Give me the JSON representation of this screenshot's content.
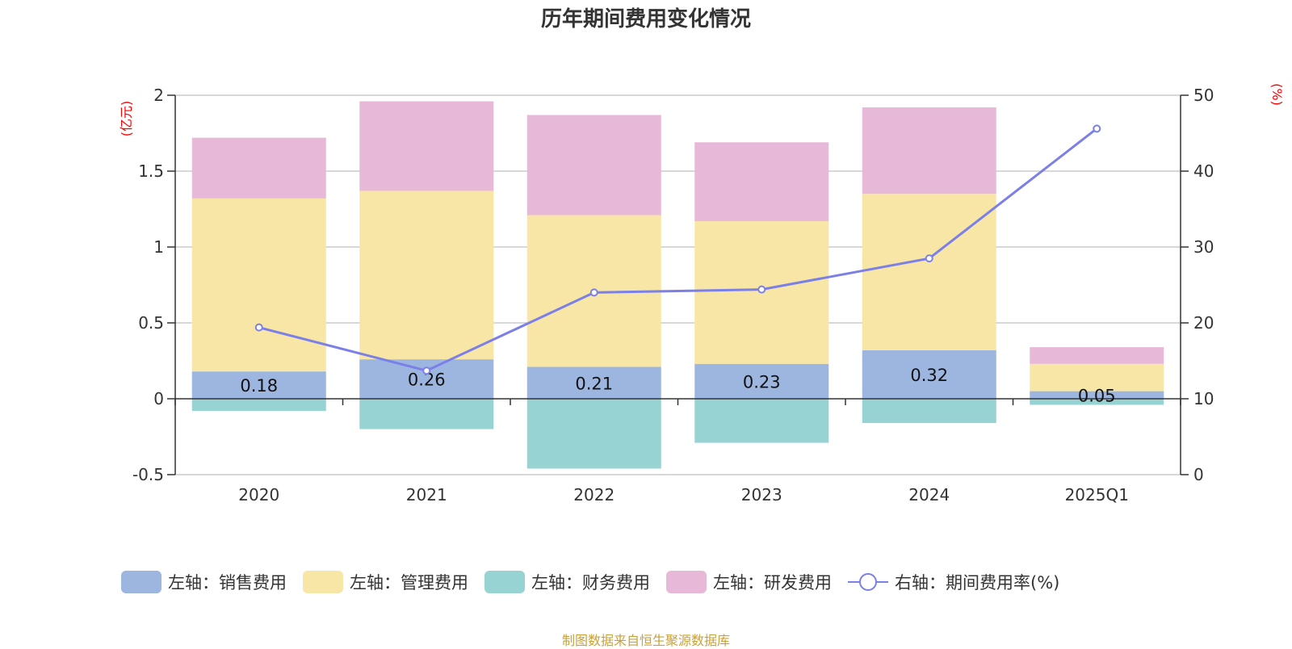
{
  "chart_data": {
    "type": "bar",
    "stacked": true,
    "title": "历年期间费用变化情况",
    "categories": [
      "2020",
      "2021",
      "2022",
      "2023",
      "2024",
      "2025Q1"
    ],
    "y_left": {
      "unit": "(亿元)",
      "ylim": [
        -0.5,
        2
      ],
      "ticks": [
        "-0.5",
        "0",
        "0.5",
        "1",
        "1.5",
        "2"
      ]
    },
    "y_right": {
      "unit": "(%)",
      "ylim": [
        0,
        50
      ],
      "ticks": [
        "0",
        "10",
        "20",
        "30",
        "40",
        "50"
      ]
    },
    "series": [
      {
        "name": "左轴：销售费用",
        "axis": "left",
        "color": "#9db6e0",
        "values": [
          0.18,
          0.26,
          0.21,
          0.23,
          0.32,
          0.05
        ],
        "labels": [
          "0.18",
          "0.26",
          "0.21",
          "0.23",
          "0.32",
          "0.05"
        ]
      },
      {
        "name": "左轴：管理费用",
        "axis": "left",
        "color": "#f8e6a7",
        "values": [
          1.14,
          1.11,
          1.0,
          0.94,
          1.03,
          0.18
        ]
      },
      {
        "name": "左轴：财务费用",
        "axis": "left",
        "color": "#98d3d4",
        "values": [
          -0.08,
          -0.2,
          -0.46,
          -0.29,
          -0.16,
          -0.04
        ]
      },
      {
        "name": "左轴：研发费用",
        "axis": "left",
        "color": "#e8b8d9",
        "values": [
          0.4,
          0.59,
          0.66,
          0.52,
          0.57,
          0.11
        ]
      },
      {
        "name": "右轴：期间费用率(%)",
        "axis": "right",
        "type": "line",
        "color": "#7b7fe8",
        "values": [
          19.4,
          13.7,
          24.0,
          24.4,
          28.5,
          45.6
        ]
      }
    ],
    "grid": true
  },
  "source": "制图数据来自恒生聚源数据库"
}
